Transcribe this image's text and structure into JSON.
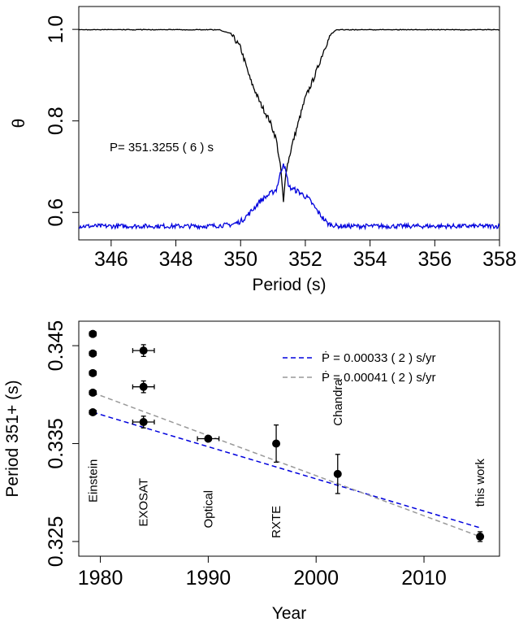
{
  "chart_data": [
    {
      "type": "line",
      "ylabel": "θ",
      "xlabel": "Period (s)",
      "xlim": [
        345,
        358
      ],
      "ylim": [
        0.54,
        1.05
      ],
      "xticks": [
        346,
        348,
        350,
        352,
        354,
        356,
        358
      ],
      "yticks": [
        0.6,
        0.8,
        1.0
      ],
      "xtick_labels": [
        "346",
        "348",
        "350",
        "352",
        "354",
        "356",
        "358"
      ],
      "ytick_labels": [
        "0.6",
        "0.8",
        "1.0"
      ],
      "annotation": "P=  351.3255 ( 6 ) s",
      "series": [
        {
          "color": "#000000",
          "x": [
            345.0,
            349.3,
            349.7,
            350.0,
            350.3,
            350.6,
            350.9,
            351.1,
            351.25,
            351.3255,
            351.4,
            351.6,
            351.8,
            352.0,
            352.3,
            352.6,
            352.8,
            353.0,
            358.0
          ],
          "y": [
            1.0,
            1.0,
            0.99,
            0.96,
            0.89,
            0.84,
            0.8,
            0.76,
            0.69,
            0.62,
            0.69,
            0.75,
            0.8,
            0.85,
            0.9,
            0.96,
            0.99,
            1.0,
            1.0
          ]
        },
        {
          "color": "#0000dd",
          "x": [
            345.0,
            349.0,
            349.7,
            350.0,
            350.3,
            350.6,
            350.9,
            351.1,
            351.3255,
            351.5,
            351.8,
            352.1,
            352.4,
            352.7,
            353.0,
            358.0
          ],
          "y": [
            0.57,
            0.57,
            0.573,
            0.58,
            0.6,
            0.625,
            0.64,
            0.65,
            0.71,
            0.655,
            0.645,
            0.63,
            0.6,
            0.575,
            0.57,
            0.57
          ]
        }
      ]
    },
    {
      "type": "scatter",
      "ylabel": "Period 351+ (s)",
      "xlabel": "Year",
      "xlim": [
        1978,
        2017
      ],
      "ylim": [
        0.3235,
        0.3475
      ],
      "xticks": [
        1980,
        1990,
        2000,
        2010
      ],
      "yticks": [
        0.325,
        0.335,
        0.345
      ],
      "xtick_labels": [
        "1980",
        "1990",
        "2000",
        "2010"
      ],
      "ytick_labels": [
        "0.325",
        "0.335",
        "0.345"
      ],
      "points": [
        {
          "x": 1979.3,
          "y": 0.3462,
          "xerr": 0.3,
          "yerr": 0
        },
        {
          "x": 1979.3,
          "y": 0.3442,
          "xerr": 0.3,
          "yerr": 0
        },
        {
          "x": 1979.3,
          "y": 0.3422,
          "xerr": 0.3,
          "yerr": 0
        },
        {
          "x": 1979.3,
          "y": 0.3402,
          "xerr": 0.3,
          "yerr": 0
        },
        {
          "x": 1979.3,
          "y": 0.3382,
          "xerr": 0.3,
          "yerr": 0
        },
        {
          "x": 1984.0,
          "y": 0.3445,
          "xerr": 1.0,
          "yerr": 0.0006
        },
        {
          "x": 1984.0,
          "y": 0.3408,
          "xerr": 1.0,
          "yerr": 0.0006
        },
        {
          "x": 1984.0,
          "y": 0.3372,
          "xerr": 1.0,
          "yerr": 0.0006
        },
        {
          "x": 1990.0,
          "y": 0.3355,
          "xerr": 1.0,
          "yerr": 0.0002
        },
        {
          "x": 1996.3,
          "y": 0.335,
          "xerr": 0,
          "yerr": 0.0019
        },
        {
          "x": 2002.0,
          "y": 0.3319,
          "xerr": 0,
          "yerr": 0.002
        },
        {
          "x": 2015.2,
          "y": 0.3255,
          "xerr": 0,
          "yerr": 0.0005
        }
      ],
      "fit_lines": [
        {
          "label": "Ṗ = 0.00033 ( 2 )  s/yr",
          "color": "#0000dd",
          "x": [
            1979.3,
            2015.2
          ],
          "y": [
            0.3382,
            0.3264
          ]
        },
        {
          "label": "Ṗ = 0.00041 ( 2 )  s/yr",
          "color": "#999999",
          "x": [
            1979.3,
            2015.2
          ],
          "y": [
            0.3402,
            0.3255
          ]
        }
      ],
      "legend_position": "top-right",
      "annotations": [
        {
          "text": "Einstein",
          "x": 1979.3,
          "y": 0.3312
        },
        {
          "text": "EXOSAT",
          "x": 1984.0,
          "y": 0.329
        },
        {
          "text": "Optical",
          "x": 1990.0,
          "y": 0.3283
        },
        {
          "text": "RXTE",
          "x": 1996.3,
          "y": 0.327
        },
        {
          "text": "Chandra",
          "x": 2002.0,
          "y": 0.3392
        },
        {
          "text": "this work",
          "x": 2015.2,
          "y": 0.331
        }
      ]
    }
  ]
}
